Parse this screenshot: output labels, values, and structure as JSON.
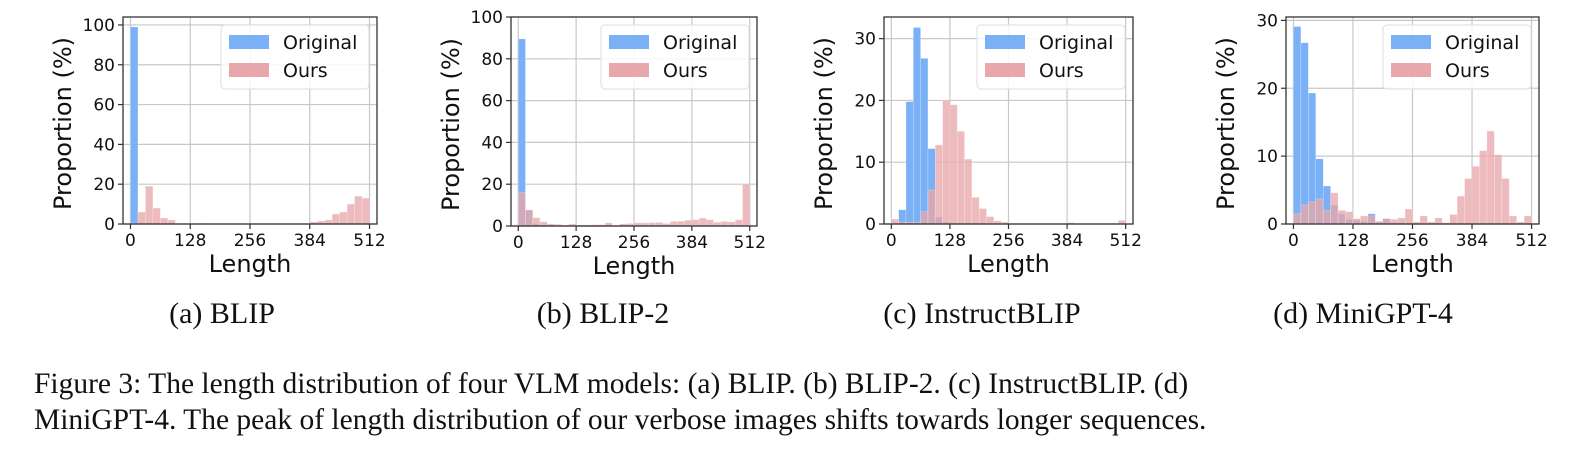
{
  "colors": {
    "original": "#7ab0f5",
    "ours": "#e8a8ab",
    "grid": "#c8c8c8",
    "axis": "#333333"
  },
  "chart_data": [
    {
      "type": "bar",
      "id": "a",
      "subcaption": "(a) BLIP",
      "xlabel": "Length",
      "ylabel": "Proportion (%)",
      "xlim": [
        -16,
        528
      ],
      "ylim": [
        0,
        104
      ],
      "xticks": [
        0,
        128,
        256,
        384,
        512
      ],
      "yticks": [
        0,
        20,
        40,
        60,
        80,
        100
      ],
      "grid": true,
      "legend": {
        "position": "top-right",
        "entries": [
          "Original",
          "Ours"
        ]
      },
      "bin_width": 16,
      "bin_starts": [
        0,
        16,
        32,
        48,
        64,
        80,
        96,
        112,
        128,
        144,
        160,
        176,
        192,
        208,
        224,
        240,
        256,
        272,
        288,
        304,
        320,
        336,
        352,
        368,
        384,
        400,
        416,
        432,
        448,
        464,
        480,
        496
      ],
      "series": [
        {
          "name": "Original",
          "values": [
            99,
            0,
            0,
            0,
            0,
            0,
            0,
            0,
            0,
            0,
            0,
            0,
            0,
            0,
            0,
            0,
            0,
            0,
            0,
            0,
            0,
            0,
            0,
            0,
            0,
            0,
            0,
            0,
            0,
            0,
            0,
            0
          ]
        },
        {
          "name": "Ours",
          "values": [
            0.5,
            6,
            19,
            8,
            3,
            2,
            0,
            0,
            0,
            0.4,
            0,
            0.2,
            0,
            0,
            0,
            0.2,
            0,
            0,
            0,
            0,
            0,
            0,
            0,
            0.3,
            1,
            1.5,
            2,
            5,
            6,
            10,
            14,
            13
          ]
        }
      ]
    },
    {
      "type": "bar",
      "id": "b",
      "subcaption": "(b) BLIP-2",
      "xlabel": "Length",
      "ylabel": "Proportion (%)",
      "xlim": [
        -16,
        528
      ],
      "ylim": [
        0,
        100
      ],
      "xticks": [
        0,
        128,
        256,
        384,
        512
      ],
      "yticks": [
        0,
        20,
        40,
        60,
        80,
        100
      ],
      "grid": true,
      "legend": {
        "position": "top-right",
        "entries": [
          "Original",
          "Ours"
        ]
      },
      "bin_width": 16,
      "bin_starts": [
        0,
        16,
        32,
        48,
        64,
        80,
        96,
        112,
        128,
        144,
        160,
        176,
        192,
        208,
        224,
        240,
        256,
        272,
        288,
        304,
        320,
        336,
        352,
        368,
        384,
        400,
        416,
        432,
        448,
        464,
        480,
        496
      ],
      "series": [
        {
          "name": "Original",
          "values": [
            89.5,
            7.5,
            1,
            0.5,
            0,
            0,
            0,
            0,
            0,
            0,
            0,
            0,
            0,
            0,
            0,
            0,
            0,
            0,
            0,
            0,
            0,
            0,
            0,
            0,
            0,
            0,
            0,
            0,
            0,
            0,
            0,
            0
          ]
        },
        {
          "name": "Ours",
          "values": [
            16,
            7.7,
            4,
            2,
            1,
            0.8,
            0.5,
            1,
            0.5,
            0.5,
            0.6,
            0.6,
            1.5,
            0.3,
            1,
            1.2,
            1.5,
            1.5,
            1.6,
            1.7,
            1.2,
            2.2,
            2.3,
            2.8,
            3,
            3.8,
            3,
            1.8,
            2.2,
            2,
            3,
            20
          ]
        }
      ]
    },
    {
      "type": "bar",
      "id": "c",
      "subcaption": "(c) InstructBLIP",
      "xlabel": "Length",
      "ylabel": "Proportion (%)",
      "xlim": [
        -16,
        528
      ],
      "ylim": [
        0,
        33.5
      ],
      "xticks": [
        0,
        128,
        256,
        384,
        512
      ],
      "yticks": [
        0,
        10,
        20,
        30
      ],
      "grid": true,
      "legend": {
        "position": "top-right",
        "entries": [
          "Original",
          "Ours"
        ]
      },
      "bin_width": 16,
      "bin_starts": [
        0,
        16,
        32,
        48,
        64,
        80,
        96,
        112,
        128,
        144,
        160,
        176,
        192,
        208,
        224,
        240,
        256,
        272,
        288,
        304,
        320,
        336,
        352,
        368,
        384,
        400,
        416,
        432,
        448,
        464,
        480,
        496
      ],
      "series": [
        {
          "name": "Original",
          "values": [
            0,
            2.3,
            19.8,
            31.8,
            26.8,
            12.2,
            1.1,
            0.3,
            0,
            0,
            0,
            0,
            0,
            0,
            0,
            0,
            0,
            0,
            0,
            0,
            0,
            0,
            0,
            0,
            0,
            0,
            0,
            0,
            0,
            0,
            0,
            0
          ]
        },
        {
          "name": "Ours",
          "values": [
            0.8,
            0.3,
            0.3,
            0.3,
            2,
            5.5,
            12.8,
            20,
            19.3,
            15,
            10.5,
            4.3,
            2.5,
            1.2,
            0.5,
            0.3,
            0,
            0,
            0,
            0,
            0,
            0,
            0,
            0,
            0.2,
            0.1,
            0,
            0,
            0,
            0,
            0,
            0.6
          ]
        }
      ]
    },
    {
      "type": "bar",
      "id": "d",
      "subcaption": "(d) MiniGPT-4",
      "xlabel": "Length",
      "ylabel": "Proportion (%)",
      "xlim": [
        -16,
        528
      ],
      "ylim": [
        0,
        30.5
      ],
      "xticks": [
        0,
        128,
        256,
        384,
        512
      ],
      "yticks": [
        0,
        10,
        20,
        30
      ],
      "grid": true,
      "legend": {
        "position": "top-right",
        "entries": [
          "Original",
          "Ours"
        ]
      },
      "bin_width": 16,
      "bin_starts": [
        0,
        16,
        32,
        48,
        64,
        80,
        96,
        112,
        128,
        144,
        160,
        176,
        192,
        208,
        224,
        240,
        256,
        272,
        288,
        304,
        320,
        336,
        352,
        368,
        384,
        400,
        416,
        432,
        448,
        464,
        480,
        496
      ],
      "series": [
        {
          "name": "Original",
          "values": [
            29.1,
            26.7,
            19.3,
            9.6,
            5.6,
            2.8,
            1.5,
            0.7,
            0.6,
            0.4,
            1.5,
            0.3,
            0.8,
            0.2,
            0.2,
            0.1,
            0,
            0,
            0,
            0,
            0,
            0,
            0,
            0,
            0,
            0,
            0,
            0,
            0,
            0,
            0,
            0
          ]
        },
        {
          "name": "Ours",
          "values": [
            1.5,
            2.8,
            3.3,
            3.7,
            2,
            4.6,
            2,
            1.8,
            0.8,
            1.2,
            1.2,
            0.4,
            0.8,
            0.7,
            0.9,
            2.2,
            0.3,
            1.2,
            0.3,
            0.9,
            0.2,
            1.4,
            4.1,
            6.7,
            8.5,
            10.8,
            13.7,
            10.2,
            6.7,
            1.2,
            0.3,
            1.2
          ]
        }
      ]
    }
  ],
  "caption": {
    "line1": "Figure 3: The length distribution of four VLM models: (a) BLIP. (b) BLIP-2. (c) InstructBLIP. (d)",
    "line2": "MiniGPT-4. The peak of length distribution of our verbose images shifts towards longer sequences."
  }
}
